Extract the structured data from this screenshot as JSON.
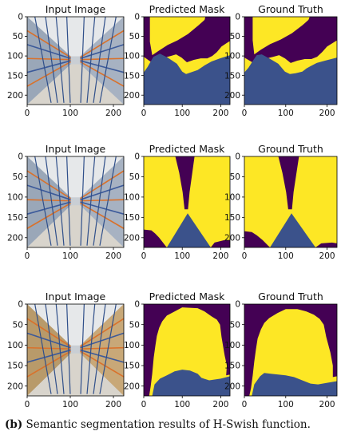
{
  "caption": {
    "label": "(b)",
    "text": "Semantic segmentation results of H-Swish function."
  },
  "colors": {
    "background_class": "#440154",
    "foreground_class": "#fde725",
    "floor_class": "#3b528b"
  },
  "chart_data": [
    {
      "type": "image-grid",
      "row": 1,
      "panels": [
        {
          "title": "Input Image",
          "kind": "photo"
        },
        {
          "title": "Predicted Mask",
          "kind": "mask",
          "bg_polygon": [
            [
              0,
              0
            ],
            [
              16,
              0
            ],
            [
              16,
              64
            ],
            [
              22,
              98
            ],
            [
              40,
              86
            ],
            [
              62,
              72
            ],
            [
              88,
              60
            ],
            [
              115,
              44
            ],
            [
              142,
              22
            ],
            [
              158,
              8
            ],
            [
              160,
              0
            ],
            [
              224,
              0
            ],
            [
              224,
              62
            ],
            [
              214,
              68
            ],
            [
              202,
              76
            ],
            [
              190,
              90
            ],
            [
              178,
              100
            ],
            [
              165,
              106
            ],
            [
              148,
              106
            ],
            [
              130,
              110
            ],
            [
              112,
              116
            ],
            [
              98,
              104
            ],
            [
              84,
              96
            ],
            [
              70,
              100
            ],
            [
              54,
              104
            ],
            [
              40,
              108
            ],
            [
              20,
              116
            ],
            [
              0,
              102
            ]
          ],
          "floor_polygon": [
            [
              0,
              142
            ],
            [
              10,
              128
            ],
            [
              25,
              102
            ],
            [
              42,
              94
            ],
            [
              62,
              104
            ],
            [
              86,
              120
            ],
            [
              100,
              140
            ],
            [
              110,
              146
            ],
            [
              122,
              142
            ],
            [
              140,
              136
            ],
            [
              158,
              124
            ],
            [
              176,
              114
            ],
            [
              198,
              106
            ],
            [
              224,
              98
            ],
            [
              224,
              224
            ],
            [
              0,
              224
            ]
          ]
        },
        {
          "title": "Ground Truth",
          "kind": "mask",
          "bg_polygon": [
            [
              0,
              0
            ],
            [
              20,
              0
            ],
            [
              20,
              60
            ],
            [
              24,
              96
            ],
            [
              40,
              84
            ],
            [
              62,
              70
            ],
            [
              88,
              58
            ],
            [
              115,
              42
            ],
            [
              140,
              22
            ],
            [
              155,
              8
            ],
            [
              158,
              0
            ],
            [
              224,
              0
            ],
            [
              224,
              60
            ],
            [
              212,
              68
            ],
            [
              200,
              76
            ],
            [
              188,
              90
            ],
            [
              176,
              102
            ],
            [
              162,
              108
            ],
            [
              146,
              108
            ],
            [
              128,
              112
            ],
            [
              112,
              118
            ],
            [
              98,
              106
            ],
            [
              84,
              98
            ],
            [
              70,
              102
            ],
            [
              54,
              106
            ],
            [
              40,
              110
            ],
            [
              22,
              118
            ],
            [
              0,
              104
            ]
          ],
          "floor_polygon": [
            [
              0,
              142
            ],
            [
              10,
              130
            ],
            [
              22,
              110
            ],
            [
              30,
              98
            ],
            [
              42,
              96
            ],
            [
              60,
              106
            ],
            [
              82,
              120
            ],
            [
              98,
              140
            ],
            [
              110,
              146
            ],
            [
              124,
              144
            ],
            [
              140,
              140
            ],
            [
              150,
              132
            ],
            [
              160,
              126
            ],
            [
              175,
              118
            ],
            [
              195,
              112
            ],
            [
              224,
              104
            ],
            [
              224,
              224
            ],
            [
              0,
              224
            ]
          ]
        }
      ],
      "x_ticks": [
        0,
        100,
        200
      ],
      "y_ticks": [
        0,
        50,
        100,
        150,
        200
      ],
      "xlim": [
        0,
        224
      ],
      "ylim": [
        224,
        0
      ]
    },
    {
      "type": "image-grid",
      "row": 2,
      "panels": [
        {
          "title": "Input Image",
          "kind": "photo"
        },
        {
          "title": "Predicted Mask",
          "kind": "mask",
          "bg_polygon": [
            [
              82,
              0
            ],
            [
              132,
              0
            ],
            [
              126,
              40
            ],
            [
              119,
              88
            ],
            [
              115,
              130
            ],
            [
              106,
              130
            ],
            [
              101,
              88
            ],
            [
              92,
              40
            ]
          ],
          "floor_polygon": [
            [
              60,
              224
            ],
            [
              114,
              140
            ],
            [
              174,
              224
            ]
          ],
          "dark_bottom_polygon": [
            [
              0,
              180
            ],
            [
              20,
              182
            ],
            [
              30,
              190
            ],
            [
              40,
              200
            ],
            [
              58,
              222
            ],
            [
              60,
              224
            ],
            [
              0,
              224
            ]
          ],
          "dark_bottom_right_polygon": [
            [
              174,
              224
            ],
            [
              184,
              212
            ],
            [
              210,
              206
            ],
            [
              224,
              206
            ],
            [
              224,
              224
            ]
          ]
        },
        {
          "title": "Ground Truth",
          "kind": "mask",
          "bg_polygon": [
            [
              82,
              0
            ],
            [
              132,
              0
            ],
            [
              126,
              40
            ],
            [
              119,
              88
            ],
            [
              115,
              130
            ],
            [
              106,
              130
            ],
            [
              101,
              88
            ],
            [
              92,
              40
            ]
          ],
          "floor_polygon": [
            [
              62,
              224
            ],
            [
              114,
              140
            ],
            [
              172,
              224
            ]
          ],
          "dark_bottom_polygon": [
            [
              0,
              184
            ],
            [
              18,
              186
            ],
            [
              30,
              194
            ],
            [
              44,
              206
            ],
            [
              58,
              220
            ],
            [
              62,
              224
            ],
            [
              0,
              224
            ]
          ],
          "dark_bottom_right_polygon": [
            [
              172,
              224
            ],
            [
              186,
              214
            ],
            [
              212,
              212
            ],
            [
              224,
              214
            ],
            [
              224,
              224
            ]
          ]
        }
      ],
      "x_ticks": [
        0,
        100,
        200
      ],
      "y_ticks": [
        0,
        50,
        100,
        150,
        200
      ],
      "xlim": [
        0,
        224
      ],
      "ylim": [
        224,
        0
      ]
    },
    {
      "type": "image-grid",
      "row": 3,
      "panels": [
        {
          "title": "Input Image",
          "kind": "photo"
        },
        {
          "title": "Predicted Mask",
          "kind": "mask",
          "bg_polygon": [
            [
              0,
              0
            ],
            [
              224,
              0
            ],
            [
              224,
              172
            ],
            [
              214,
              174
            ],
            [
              216,
              150
            ],
            [
              210,
              125
            ],
            [
              202,
              80
            ],
            [
              198,
              50
            ],
            [
              190,
              38
            ],
            [
              176,
              30
            ],
            [
              158,
              18
            ],
            [
              140,
              10
            ],
            [
              100,
              8
            ],
            [
              80,
              18
            ],
            [
              60,
              28
            ],
            [
              48,
              42
            ],
            [
              40,
              58
            ],
            [
              34,
              78
            ],
            [
              30,
              102
            ],
            [
              26,
              130
            ],
            [
              22,
              170
            ],
            [
              18,
              200
            ],
            [
              14,
              224
            ],
            [
              0,
              224
            ]
          ],
          "floor_polygon": [
            [
              22,
              224
            ],
            [
              28,
              196
            ],
            [
              42,
              182
            ],
            [
              60,
              174
            ],
            [
              80,
              164
            ],
            [
              100,
              160
            ],
            [
              120,
              162
            ],
            [
              140,
              170
            ],
            [
              150,
              180
            ],
            [
              170,
              186
            ],
            [
              200,
              182
            ],
            [
              224,
              176
            ],
            [
              224,
              224
            ]
          ]
        },
        {
          "title": "Ground Truth",
          "kind": "mask",
          "bg_polygon": [
            [
              0,
              0
            ],
            [
              224,
              0
            ],
            [
              224,
              176
            ],
            [
              214,
              178
            ],
            [
              214,
              150
            ],
            [
              208,
              118
            ],
            [
              198,
              80
            ],
            [
              192,
              50
            ],
            [
              182,
              36
            ],
            [
              168,
              26
            ],
            [
              150,
              18
            ],
            [
              128,
              12
            ],
            [
              100,
              12
            ],
            [
              80,
              22
            ],
            [
              60,
              34
            ],
            [
              48,
              46
            ],
            [
              40,
              62
            ],
            [
              32,
              84
            ],
            [
              28,
              110
            ],
            [
              24,
              140
            ],
            [
              20,
              175
            ],
            [
              16,
              205
            ],
            [
              12,
              224
            ],
            [
              0,
              224
            ]
          ],
          "floor_polygon": [
            [
              18,
              224
            ],
            [
              24,
              196
            ],
            [
              38,
              176
            ],
            [
              48,
              168
            ],
            [
              64,
              170
            ],
            [
              82,
              172
            ],
            [
              100,
              174
            ],
            [
              120,
              178
            ],
            [
              140,
              186
            ],
            [
              160,
              194
            ],
            [
              178,
              196
            ],
            [
              200,
              192
            ],
            [
              224,
              188
            ],
            [
              224,
              224
            ]
          ]
        }
      ],
      "x_ticks": [
        0,
        100,
        200
      ],
      "y_ticks": [
        0,
        50,
        100,
        150,
        200
      ],
      "xlim": [
        0,
        224
      ],
      "ylim": [
        224,
        0
      ]
    }
  ]
}
